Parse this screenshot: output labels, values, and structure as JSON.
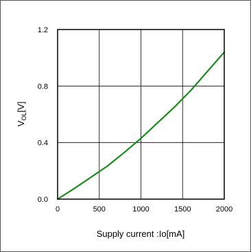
{
  "chart_data": {
    "type": "line",
    "xlabel": "Supply current :Io[mA]",
    "ylabel": {
      "main": "V",
      "subscript": "OL",
      "unit": "[V]"
    },
    "xlim": [
      0,
      2000
    ],
    "ylim": [
      0,
      1.2
    ],
    "x_ticks": [
      "0",
      "500",
      "1000",
      "1500",
      "2000"
    ],
    "y_ticks": [
      "0.0",
      "0.4",
      "0.8",
      "1.2"
    ],
    "grid": true,
    "series": [
      {
        "color": "#1a8a1a",
        "x": [
          0,
          200,
          400,
          600,
          800,
          1000,
          1200,
          1400,
          1600,
          1800,
          2000
        ],
        "y": [
          0.0,
          0.075,
          0.155,
          0.235,
          0.33,
          0.43,
          0.54,
          0.65,
          0.77,
          0.905,
          1.04
        ]
      }
    ]
  }
}
